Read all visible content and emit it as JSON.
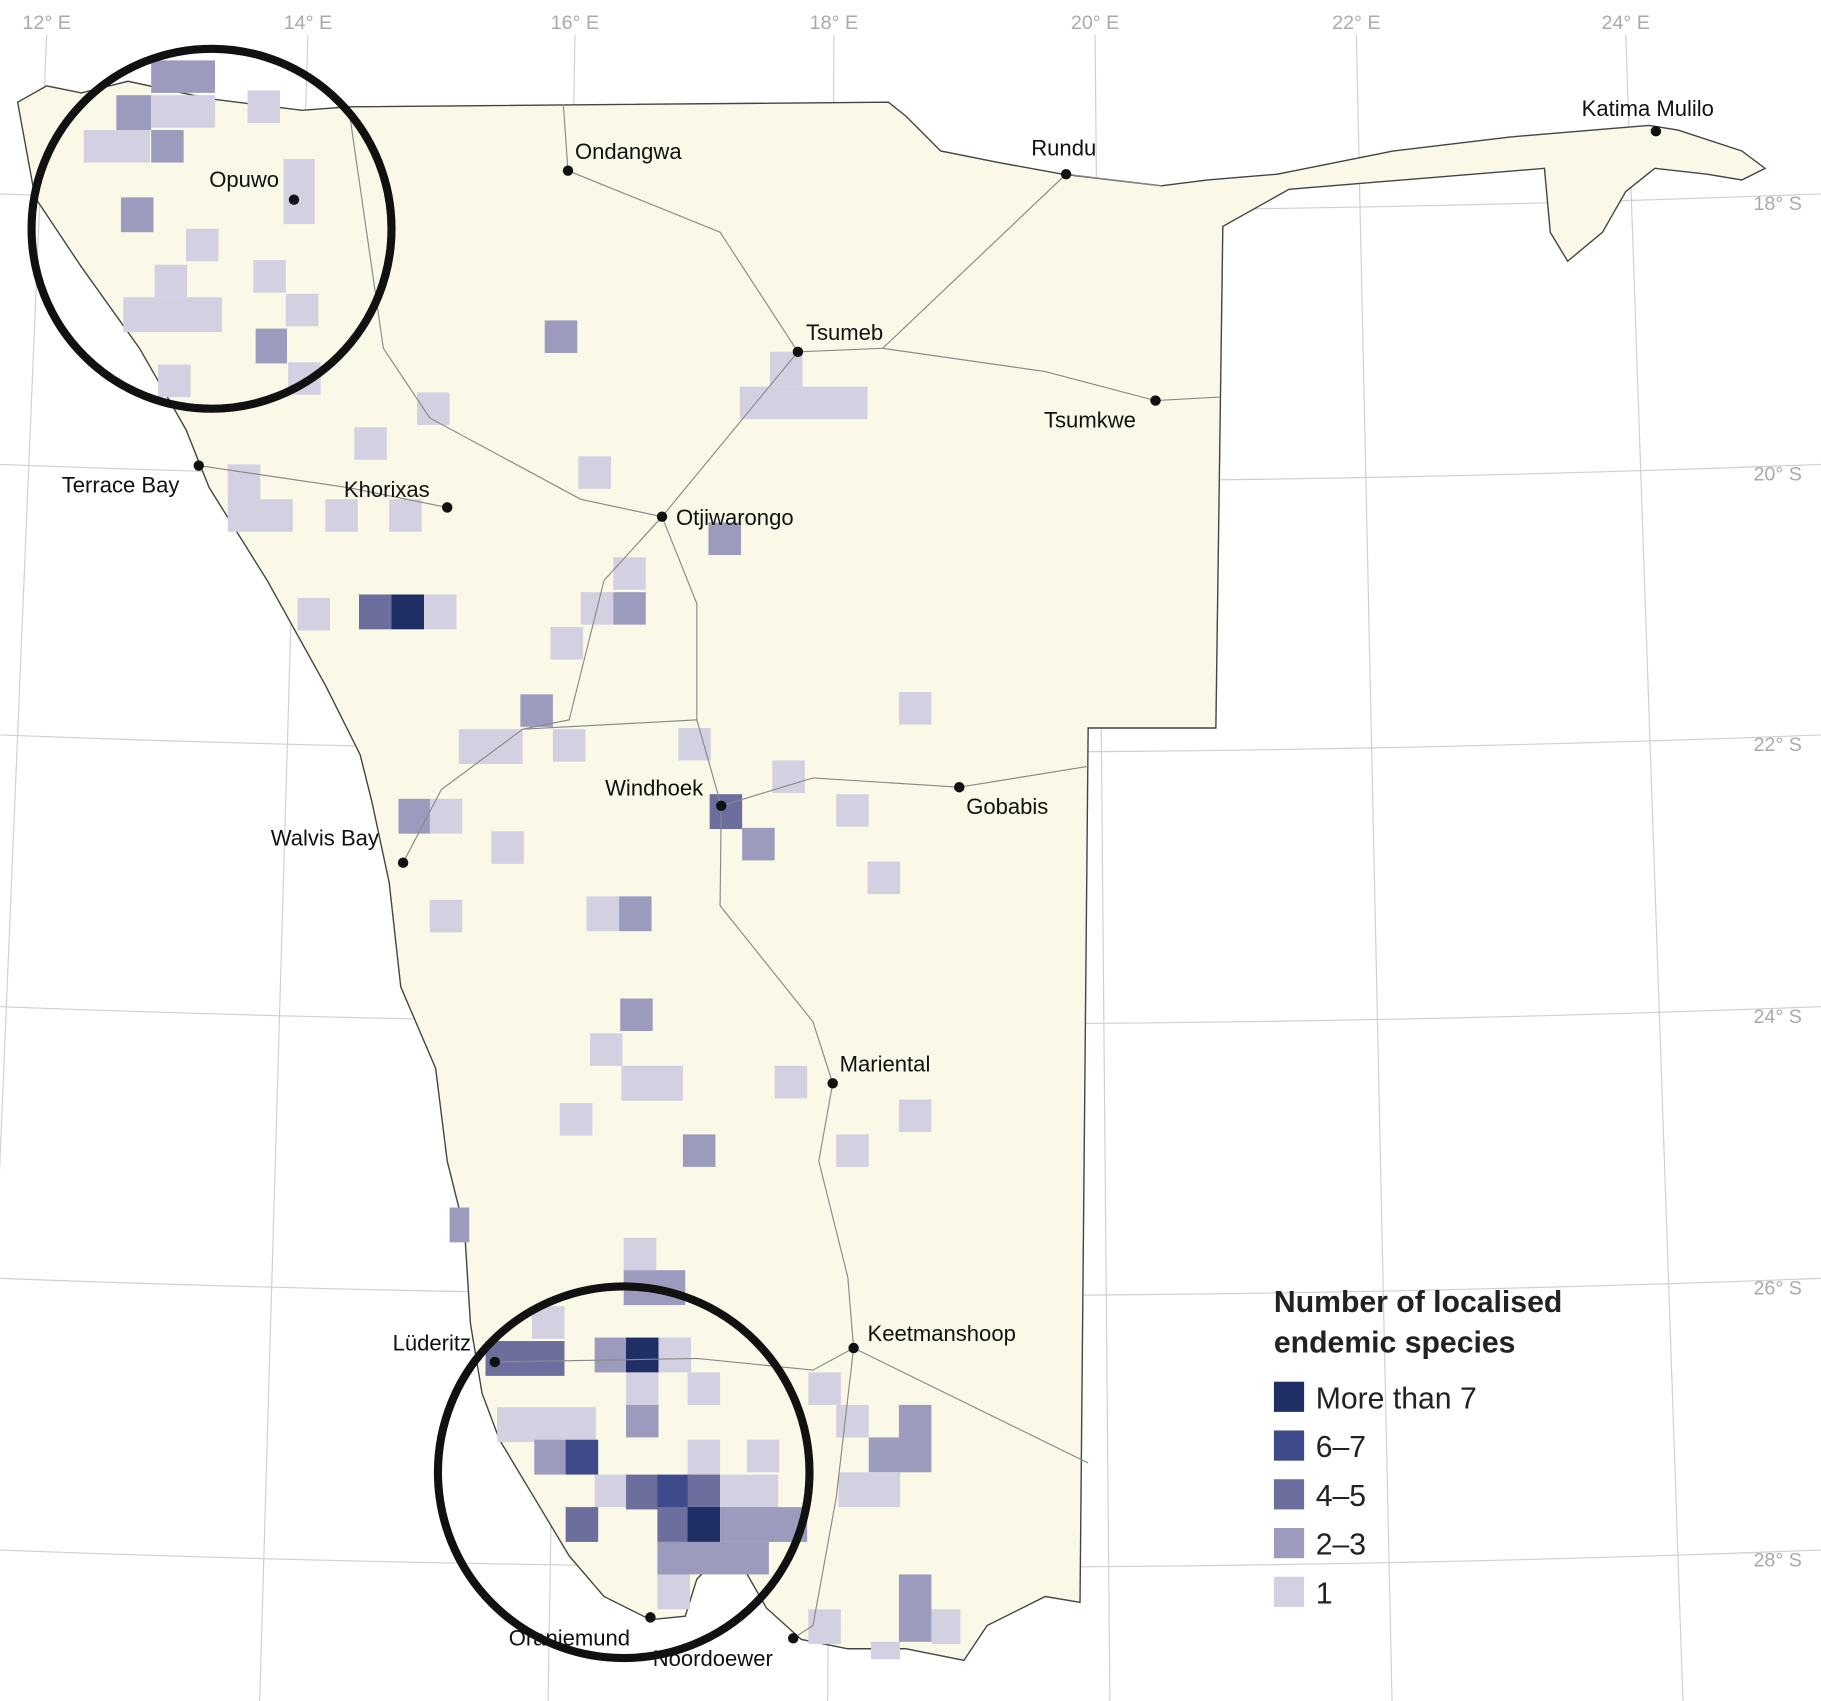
{
  "map": {
    "lon_labels": [
      "12° E",
      "14° E",
      "16° E",
      "18° E",
      "20° E",
      "22° E",
      "24° E"
    ],
    "lat_labels": [
      "18° S",
      "20° S",
      "22° S",
      "24° S",
      "26° S",
      "28° S"
    ],
    "towns": [
      "Ondangwa",
      "Rundu",
      "Katima Mulilo",
      "Opuwo",
      "Tsumeb",
      "Tsumkwe",
      "Terrace Bay",
      "Khorixas",
      "Otjiwarongo",
      "Windhoek",
      "Gobabis",
      "Walvis Bay",
      "Mariental",
      "Keetmanshoop",
      "Lüderitz",
      "Oranjemund",
      "Noordoewer"
    ],
    "legend": {
      "title": [
        "Number of localised",
        "endemic species"
      ],
      "items": [
        {
          "label": "More than 7",
          "color": "#1f2f66"
        },
        {
          "label": "6–7",
          "color": "#3e4a8a"
        },
        {
          "label": "4–5",
          "color": "#6c6e9e"
        },
        {
          "label": "2–3",
          "color": "#9c9bbe"
        },
        {
          "label": "1",
          "color": "#d3d0e2"
        }
      ]
    }
  }
}
